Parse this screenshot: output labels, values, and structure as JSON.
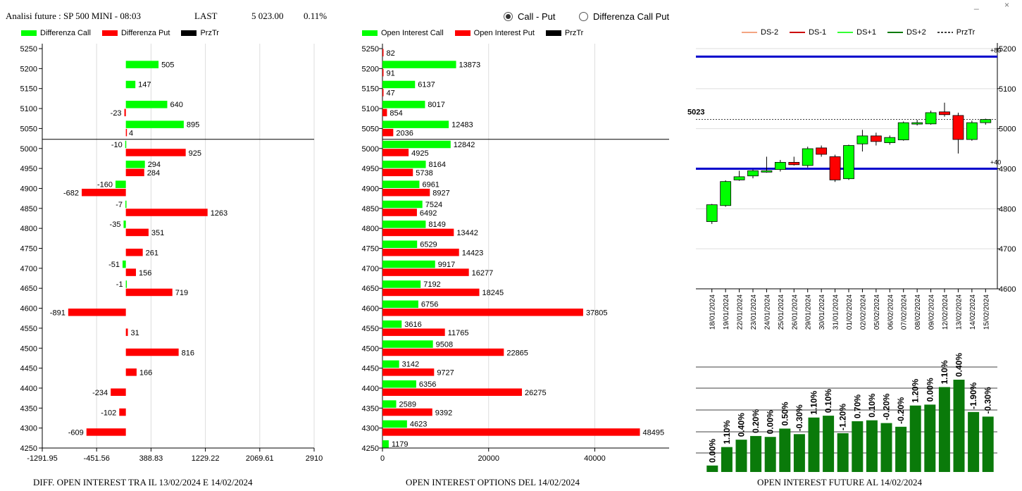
{
  "header": {
    "title": "Analisi future : SP 500 MINI - 08:03",
    "last_label": "LAST",
    "last_value": "5 023.00",
    "change": "0.11%"
  },
  "radio": {
    "option1": "Call - Put",
    "option2": "Differenza Call Put",
    "selected": "option1"
  },
  "colors": {
    "green": "#00ff00",
    "red": "#ff0000",
    "black": "#000000",
    "blue": "#0000cc",
    "dark_green": "#0a7a0a"
  },
  "legend_left": [
    "Differenza Call",
    "Differenza Put",
    "PrzTr"
  ],
  "legend_mid": [
    "Open Interest Call",
    "Open Interest Put",
    "PrzTr"
  ],
  "legend_right": [
    "DS-2",
    "DS-1",
    "DS+1",
    "DS+2",
    "PrzTr"
  ],
  "footers": {
    "left": "DIFF. OPEN INTEREST TRA IL 13/02/2024 E 14/02/2024",
    "mid": "OPEN INTEREST OPTIONS DEL 14/02/2024",
    "right": "OPEN INTEREST FUTURE AL 14/02/2024"
  },
  "chart_data": [
    {
      "type": "bar",
      "orientation": "horizontal",
      "strikes": [
        5250,
        5200,
        5150,
        5100,
        5050,
        5000,
        4950,
        4900,
        4850,
        4800,
        4750,
        4700,
        4650,
        4600,
        4550,
        4500,
        4450,
        4400,
        4350,
        4300,
        4250
      ],
      "series": [
        {
          "name": "Differenza Call",
          "values": [
            null,
            505,
            147,
            640,
            895,
            -10,
            294,
            -160,
            -7,
            -35,
            null,
            -51,
            -1,
            null,
            null,
            null,
            null,
            null,
            null,
            null,
            null
          ]
        },
        {
          "name": "Differenza Put",
          "values": [
            null,
            null,
            null,
            -23,
            4,
            925,
            284,
            -682,
            1263,
            351,
            261,
            156,
            719,
            -891,
            31,
            816,
            166,
            -234,
            -102,
            -609,
            null
          ]
        }
      ],
      "price_line": 5023,
      "xticks": [
        "-1291.95",
        "-451.56",
        "388.83",
        "1229.22",
        "2069.61",
        "2910"
      ],
      "xlim": [
        -1291.95,
        2910
      ],
      "ylim": [
        4250,
        5250
      ]
    },
    {
      "type": "bar",
      "orientation": "horizontal",
      "strikes": [
        5250,
        5200,
        5150,
        5100,
        5050,
        5000,
        4950,
        4900,
        4850,
        4800,
        4750,
        4700,
        4650,
        4600,
        4550,
        4500,
        4450,
        4400,
        4350,
        4300,
        4250
      ],
      "series": [
        {
          "name": "Open Interest Call",
          "values": [
            null,
            13873,
            6137,
            8017,
            12483,
            12842,
            8164,
            6961,
            7524,
            8149,
            6529,
            9917,
            7192,
            6756,
            3616,
            9508,
            3142,
            6356,
            2589,
            4623,
            1179
          ]
        },
        {
          "name": "Open Interest Put",
          "values": [
            82,
            91,
            47,
            854,
            2036,
            4925,
            5738,
            8927,
            6492,
            13442,
            14423,
            16277,
            18245,
            37805,
            11765,
            22865,
            9727,
            26275,
            9392,
            48495,
            null
          ]
        }
      ],
      "price_line": 5023,
      "xticks": [
        "0",
        "20000",
        "40000"
      ],
      "xlim": [
        0,
        54000
      ],
      "ylim": [
        4250,
        5250
      ]
    },
    {
      "type": "candlestick",
      "dates": [
        "18/01/2024",
        "19/01/2024",
        "22/01/2024",
        "23/01/2024",
        "24/01/2024",
        "25/01/2024",
        "26/01/2024",
        "29/01/2024",
        "30/01/2024",
        "31/01/2024",
        "01/02/2024",
        "02/02/2024",
        "05/02/2024",
        "06/02/2024",
        "07/02/2024",
        "08/02/2024",
        "09/02/2024",
        "12/02/2024",
        "13/02/2024",
        "14/02/2024",
        "15/02/2024"
      ],
      "candles": [
        {
          "o": 4768,
          "h": 4812,
          "l": 4762,
          "c": 4810
        },
        {
          "o": 4808,
          "h": 4871,
          "l": 4805,
          "c": 4868
        },
        {
          "o": 4872,
          "h": 4895,
          "l": 4870,
          "c": 4880
        },
        {
          "o": 4882,
          "h": 4898,
          "l": 4876,
          "c": 4895
        },
        {
          "o": 4895,
          "h": 4930,
          "l": 4890,
          "c": 4895
        },
        {
          "o": 4898,
          "h": 4922,
          "l": 4893,
          "c": 4916
        },
        {
          "o": 4916,
          "h": 4930,
          "l": 4908,
          "c": 4910
        },
        {
          "o": 4908,
          "h": 4955,
          "l": 4903,
          "c": 4950
        },
        {
          "o": 4952,
          "h": 4958,
          "l": 4930,
          "c": 4936
        },
        {
          "o": 4930,
          "h": 4935,
          "l": 4867,
          "c": 4872
        },
        {
          "o": 4875,
          "h": 4960,
          "l": 4872,
          "c": 4958
        },
        {
          "o": 4962,
          "h": 4997,
          "l": 4943,
          "c": 4982
        },
        {
          "o": 4982,
          "h": 4990,
          "l": 4958,
          "c": 4968
        },
        {
          "o": 4965,
          "h": 4983,
          "l": 4960,
          "c": 4978
        },
        {
          "o": 4972,
          "h": 5018,
          "l": 4970,
          "c": 5015
        },
        {
          "o": 5015,
          "h": 5022,
          "l": 5008,
          "c": 5015
        },
        {
          "o": 5012,
          "h": 5045,
          "l": 5010,
          "c": 5040
        },
        {
          "o": 5042,
          "h": 5065,
          "l": 5030,
          "c": 5035
        },
        {
          "o": 5033,
          "h": 5040,
          "l": 4938,
          "c": 4973
        },
        {
          "o": 4973,
          "h": 5020,
          "l": 4970,
          "c": 5015
        },
        {
          "o": 5015,
          "h": 5025,
          "l": 5010,
          "c": 5023
        }
      ],
      "price_label": "5023",
      "price_line": 5023,
      "bands": [
        {
          "value": 5180,
          "label": "+80"
        },
        {
          "value": 4900,
          "label": "+40"
        }
      ],
      "yticks": [
        "4600",
        "4700",
        "4800",
        "4900",
        "5000",
        "5100",
        "5200"
      ],
      "ylim": [
        4600,
        5200
      ]
    },
    {
      "type": "bar",
      "orientation": "vertical",
      "values": [
        0.0,
        1.1,
        0.4,
        0.2,
        0.0,
        0.5,
        -0.3,
        1.1,
        0.1,
        -1.2,
        0.7,
        0.1,
        -0.2,
        -0.2,
        1.2,
        0.0,
        1.1,
        0.4,
        -1.9,
        -0.3
      ],
      "labels": [
        "0.00%",
        "1.10%",
        "0.40%",
        "0.20%",
        "0.00%",
        "0.50%",
        "-0.30%",
        "1.10%",
        "0.10%",
        "-1.20%",
        "0.70%",
        "0.10%",
        "-0.20%",
        "-0.20%",
        "1.20%",
        "0.00%",
        "1.10%",
        "0.40%",
        "-1.90%",
        "-0.30%"
      ],
      "heights": [
        0.07,
        0.27,
        0.35,
        0.39,
        0.38,
        0.47,
        0.41,
        0.59,
        0.61,
        0.42,
        0.55,
        0.56,
        0.53,
        0.49,
        0.72,
        0.73,
        0.92,
        1.0,
        0.65,
        0.6
      ]
    }
  ]
}
